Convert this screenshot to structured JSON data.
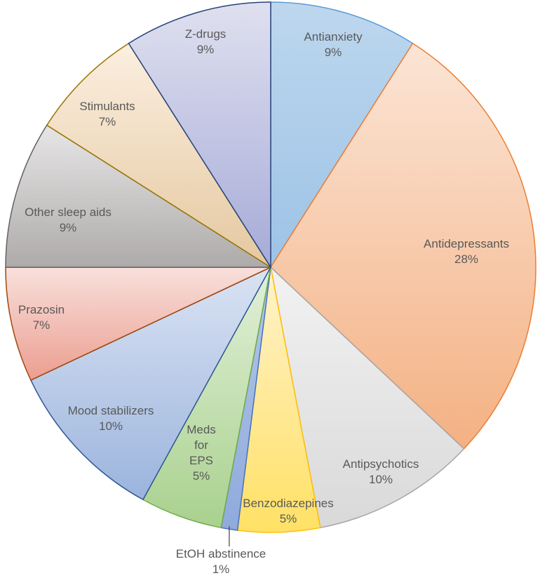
{
  "chart_data": {
    "type": "pie",
    "title": "",
    "slices": [
      {
        "label": "Antianxiety",
        "pct_label": "9%",
        "value": 9,
        "color": "#bdd7ee",
        "color_dark": "#9dc3e6",
        "stroke": "#5b9bd5"
      },
      {
        "label": "Antidepressants",
        "pct_label": "28%",
        "value": 28,
        "color": "#fbe5d6",
        "color_dark": "#f4b183",
        "stroke": "#ed7d31"
      },
      {
        "label": "Antipsychotics",
        "pct_label": "10%",
        "value": 10,
        "color": "#f2f2f2",
        "color_dark": "#d9d9d9",
        "stroke": "#a5a5a5"
      },
      {
        "label": "Benzodiazepines",
        "pct_label": "5%",
        "value": 5,
        "color": "#fff2cc",
        "color_dark": "#ffe165",
        "stroke": "#ffc000"
      },
      {
        "label": "EtOH abstinence",
        "pct_label": "1%",
        "value": 1,
        "color": "#b4c7e7",
        "color_dark": "#8faadc",
        "stroke": "#4472c4"
      },
      {
        "label": "Meds for EPS",
        "pct_label": "5%",
        "value": 5,
        "color": "#e2f0d9",
        "color_dark": "#a9d18e",
        "stroke": "#70ad47"
      },
      {
        "label": "Mood stabilizers",
        "pct_label": "10%",
        "value": 10,
        "color": "#dae3f3",
        "color_dark": "#9bb4dd",
        "stroke": "#2e5597"
      },
      {
        "label": "Prazosin",
        "pct_label": "7%",
        "value": 7,
        "color": "#f8e0dc",
        "color_dark": "#ec9e90",
        "stroke": "#9e480e"
      },
      {
        "label": "Other sleep aids",
        "pct_label": "9%",
        "value": 9,
        "color": "#e7e6e6",
        "color_dark": "#aeaaaa",
        "stroke": "#636363"
      },
      {
        "label": "Stimulants",
        "pct_label": "7%",
        "value": 7,
        "color": "#fbefe0",
        "color_dark": "#e5c8a0",
        "stroke": "#997300"
      },
      {
        "label": "Z-drugs",
        "pct_label": "9%",
        "value": 9,
        "color": "#dfe0ef",
        "color_dark": "#a6abd8",
        "stroke": "#264478"
      }
    ]
  }
}
